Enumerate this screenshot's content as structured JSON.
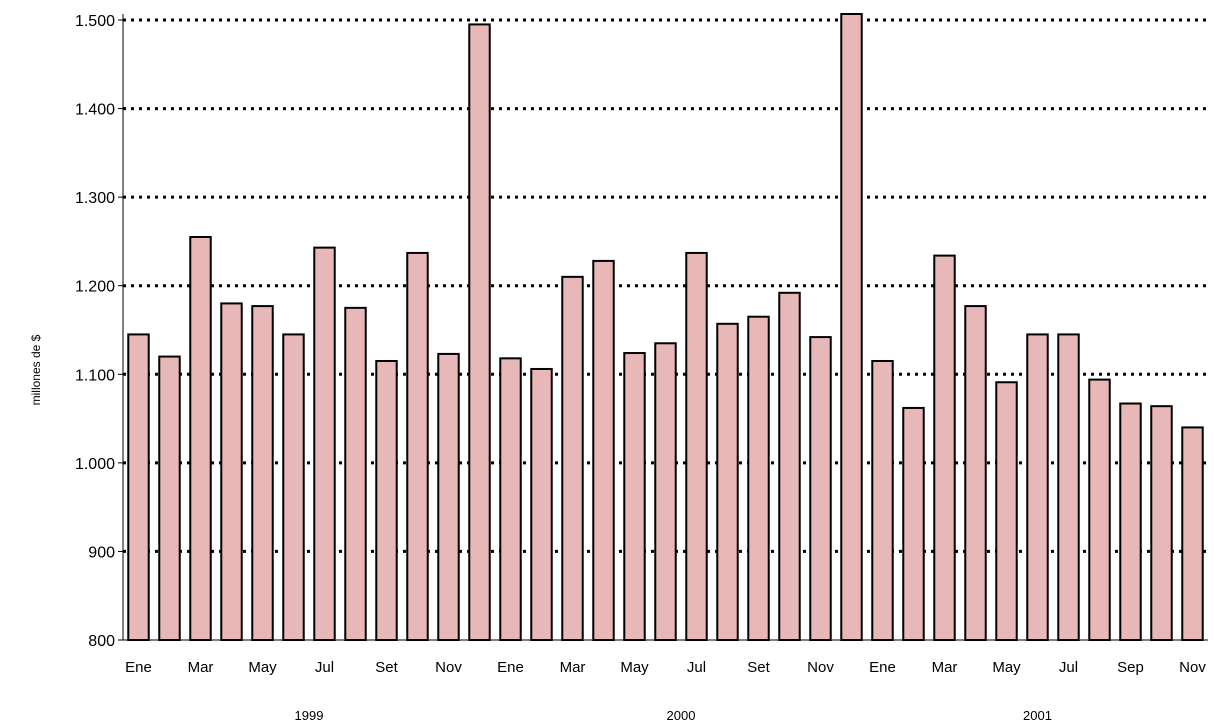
{
  "chart_data": {
    "type": "bar",
    "ylabel": "millones de $",
    "xlabel": "",
    "title": "",
    "ylim": [
      800,
      1500
    ],
    "yticks": [
      800,
      900,
      1000,
      1100,
      1200,
      1300,
      1400,
      1500
    ],
    "ytick_labels": [
      "800",
      "900",
      "1.000",
      "1.100",
      "1.200",
      "1.300",
      "1.400",
      "1.500"
    ],
    "grid": "horizontal dotted",
    "bar_color": "#e8b8b8",
    "categories": [
      "Ene",
      "",
      "Mar",
      "",
      "May",
      "",
      "Jul",
      "",
      "Set",
      "",
      "Nov",
      "",
      "Ene",
      "",
      "Mar",
      "",
      "May",
      "",
      "Jul",
      "",
      "Set",
      "",
      "Nov",
      "",
      "Ene",
      "",
      "Mar",
      "",
      "May",
      "",
      "Jul",
      "",
      "Sep",
      "",
      "Nov"
    ],
    "groups": [
      {
        "label": "1999",
        "start": 0,
        "count": 12
      },
      {
        "label": "2000",
        "start": 12,
        "count": 12
      },
      {
        "label": "2001",
        "start": 24,
        "count": 11
      }
    ],
    "values": [
      1145,
      1120,
      1255,
      1180,
      1177,
      1145,
      1243,
      1175,
      1115,
      1237,
      1123,
      1495,
      1118,
      1106,
      1210,
      1228,
      1124,
      1135,
      1237,
      1157,
      1165,
      1192,
      1142,
      1520,
      1115,
      1062,
      1234,
      1177,
      1091,
      1145,
      1145,
      1094,
      1067,
      1064,
      1040
    ]
  }
}
